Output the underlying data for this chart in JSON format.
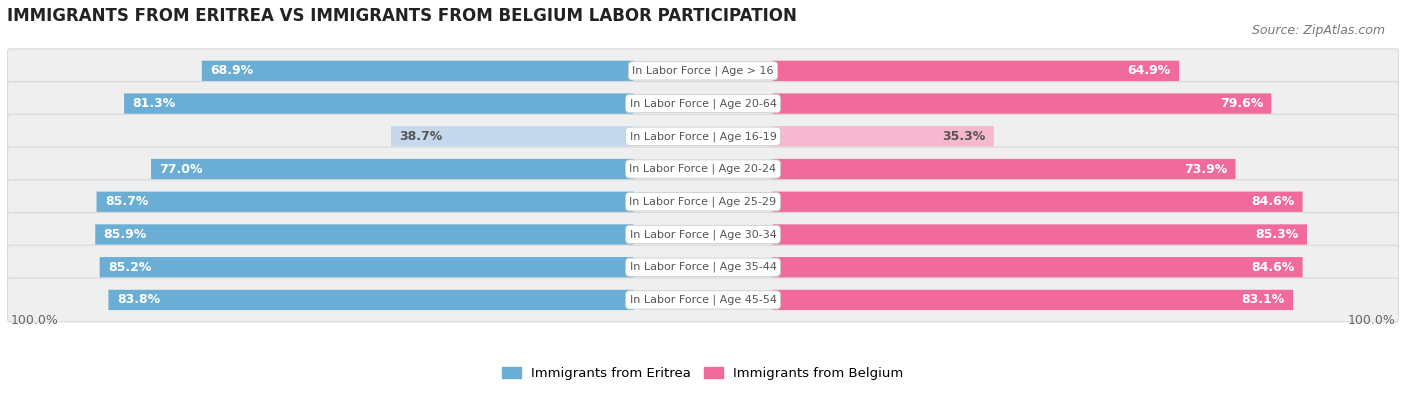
{
  "title": "IMMIGRANTS FROM ERITREA VS IMMIGRANTS FROM BELGIUM LABOR PARTICIPATION",
  "source": "Source: ZipAtlas.com",
  "categories": [
    "In Labor Force | Age > 16",
    "In Labor Force | Age 20-64",
    "In Labor Force | Age 16-19",
    "In Labor Force | Age 20-24",
    "In Labor Force | Age 25-29",
    "In Labor Force | Age 30-34",
    "In Labor Force | Age 35-44",
    "In Labor Force | Age 45-54"
  ],
  "eritrea_values": [
    68.9,
    81.3,
    38.7,
    77.0,
    85.7,
    85.9,
    85.2,
    83.8
  ],
  "belgium_values": [
    64.9,
    79.6,
    35.3,
    73.9,
    84.6,
    85.3,
    84.6,
    83.1
  ],
  "eritrea_color": "#6aaed6",
  "eritrea_color_light": "#c6d9ec",
  "belgium_color": "#f06a9b",
  "belgium_color_light": "#f5b8ce",
  "row_bg_color": "#efefef",
  "row_edge_color": "#d8d8d8",
  "label_color_dark": "#555555",
  "label_color_white": "#ffffff",
  "center_label_bg": "#ffffff",
  "legend_eritrea": "Immigrants from Eritrea",
  "legend_belgium": "Immigrants from Belgium",
  "max_value": 100.0,
  "title_fontsize": 12,
  "source_fontsize": 9,
  "bar_label_fontsize": 9,
  "category_fontsize": 8,
  "legend_fontsize": 9.5,
  "axis_label_fontsize": 9,
  "threshold": 60
}
